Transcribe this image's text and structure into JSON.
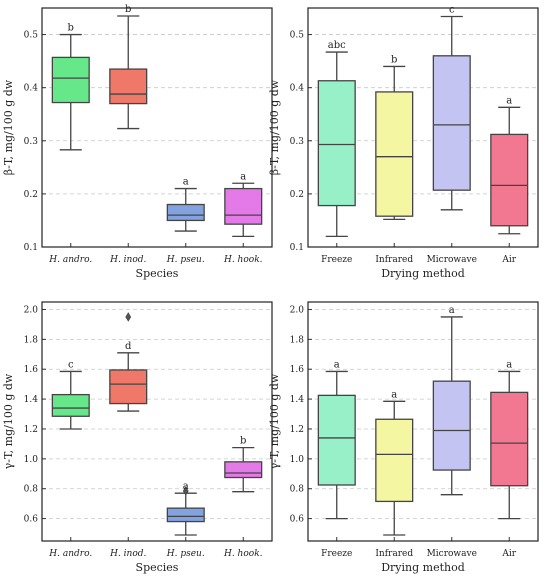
{
  "chart_data": [
    {
      "type": "box",
      "xlabel": "Species",
      "ylabel": "β-T, mg/100 g dw",
      "ylim": [
        0.1,
        0.55
      ],
      "yticks": [
        "0.1",
        "0.2",
        "0.3",
        "0.4",
        "0.5"
      ],
      "ytick_values": [
        0.1,
        0.2,
        0.3,
        0.4,
        0.5
      ],
      "italic_categories": true,
      "grid": "horizontal dashed",
      "boxes": [
        {
          "category": "H. andro.",
          "color": "#66e88a",
          "min": 0.283,
          "q1": 0.372,
          "median": 0.418,
          "q3": 0.457,
          "max": 0.5,
          "label": "b",
          "outliers": []
        },
        {
          "category": "H. inod.",
          "color": "#f07868",
          "min": 0.323,
          "q1": 0.37,
          "median": 0.388,
          "q3": 0.435,
          "max": 0.535,
          "label": "b",
          "outliers": []
        },
        {
          "category": "H. pseu.",
          "color": "#82a2e0",
          "min": 0.13,
          "q1": 0.15,
          "median": 0.16,
          "q3": 0.18,
          "max": 0.21,
          "label": "a",
          "outliers": []
        },
        {
          "category": "H. hook.",
          "color": "#e47ae8",
          "min": 0.12,
          "q1": 0.143,
          "median": 0.16,
          "q3": 0.21,
          "max": 0.22,
          "label": "a",
          "outliers": []
        }
      ]
    },
    {
      "type": "box",
      "xlabel": "Drying method",
      "ylabel": "β-T, mg/100 g dw",
      "ylim": [
        0.1,
        0.55
      ],
      "yticks": [
        "0.1",
        "0.2",
        "0.3",
        "0.4",
        "0.5"
      ],
      "ytick_values": [
        0.1,
        0.2,
        0.3,
        0.4,
        0.5
      ],
      "italic_categories": false,
      "grid": "horizontal dashed",
      "boxes": [
        {
          "category": "Freeze",
          "color": "#98f0c8",
          "min": 0.12,
          "q1": 0.178,
          "median": 0.293,
          "q3": 0.413,
          "max": 0.467,
          "label": "abc",
          "outliers": []
        },
        {
          "category": "Infrared",
          "color": "#f4f6a2",
          "min": 0.152,
          "q1": 0.158,
          "median": 0.27,
          "q3": 0.392,
          "max": 0.44,
          "label": "b",
          "outliers": []
        },
        {
          "category": "Microwave",
          "color": "#c4c4f2",
          "min": 0.17,
          "q1": 0.207,
          "median": 0.33,
          "q3": 0.46,
          "max": 0.534,
          "label": "c",
          "outliers": []
        },
        {
          "category": "Air",
          "color": "#f27892",
          "min": 0.125,
          "q1": 0.14,
          "median": 0.216,
          "q3": 0.312,
          "max": 0.363,
          "label": "a",
          "outliers": []
        }
      ]
    },
    {
      "type": "box",
      "xlabel": "Species",
      "ylabel": "γ-T, mg/100 g dw",
      "ylim": [
        0.45,
        2.05
      ],
      "yticks": [
        "0.6",
        "0.8",
        "1.0",
        "1.2",
        "1.4",
        "1.6",
        "1.8",
        "2.0"
      ],
      "ytick_values": [
        0.6,
        0.8,
        1.0,
        1.2,
        1.4,
        1.6,
        1.8,
        2.0
      ],
      "italic_categories": true,
      "grid": "horizontal dashed",
      "boxes": [
        {
          "category": "H. andro.",
          "color": "#66e88a",
          "min": 1.2,
          "q1": 1.285,
          "median": 1.34,
          "q3": 1.43,
          "max": 1.585,
          "label": "c",
          "outliers": []
        },
        {
          "category": "H. inod.",
          "color": "#f07868",
          "min": 1.32,
          "q1": 1.37,
          "median": 1.5,
          "q3": 1.595,
          "max": 1.71,
          "label": "d",
          "outliers": [
            1.95
          ]
        },
        {
          "category": "H. pseu.",
          "color": "#82a2e0",
          "min": 0.49,
          "q1": 0.58,
          "median": 0.615,
          "q3": 0.67,
          "max": 0.77,
          "label": "a",
          "outliers": [
            0.785
          ]
        },
        {
          "category": "H. hook.",
          "color": "#e47ae8",
          "min": 0.78,
          "q1": 0.875,
          "median": 0.905,
          "q3": 0.98,
          "max": 1.075,
          "label": "b",
          "outliers": []
        }
      ]
    },
    {
      "type": "box",
      "xlabel": "Drying method",
      "ylabel": "γ-T, mg/100 g dw",
      "ylim": [
        0.45,
        2.05
      ],
      "yticks": [
        "0.6",
        "0.8",
        "1.0",
        "1.2",
        "1.4",
        "1.6",
        "1.8",
        "2.0"
      ],
      "ytick_values": [
        0.6,
        0.8,
        1.0,
        1.2,
        1.4,
        1.6,
        1.8,
        2.0
      ],
      "italic_categories": false,
      "grid": "horizontal dashed",
      "boxes": [
        {
          "category": "Freeze",
          "color": "#98f0c8",
          "min": 0.6,
          "q1": 0.825,
          "median": 1.14,
          "q3": 1.425,
          "max": 1.585,
          "label": "a",
          "outliers": []
        },
        {
          "category": "Infrared",
          "color": "#f4f6a2",
          "min": 0.49,
          "q1": 0.715,
          "median": 1.03,
          "q3": 1.265,
          "max": 1.385,
          "label": "a",
          "outliers": []
        },
        {
          "category": "Microwave",
          "color": "#c4c4f2",
          "min": 0.76,
          "q1": 0.925,
          "median": 1.19,
          "q3": 1.52,
          "max": 1.95,
          "label": "a",
          "outliers": []
        },
        {
          "category": "Air",
          "color": "#f27892",
          "min": 0.6,
          "q1": 0.82,
          "median": 1.105,
          "q3": 1.445,
          "max": 1.585,
          "label": "a",
          "outliers": []
        }
      ]
    }
  ]
}
